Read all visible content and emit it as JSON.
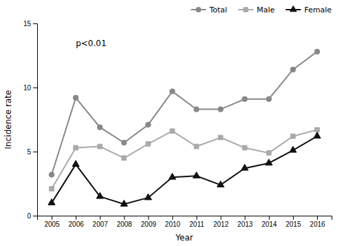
{
  "chart_data": {
    "type": "line",
    "x": [
      2005,
      2006,
      2007,
      2008,
      2009,
      2010,
      2011,
      2012,
      2013,
      2014,
      2015,
      2016
    ],
    "series": [
      {
        "name": "Total",
        "color": "#888888",
        "marker": "circle",
        "values": [
          3.2,
          9.2,
          6.9,
          5.7,
          7.1,
          9.7,
          8.3,
          8.3,
          9.1,
          9.1,
          11.4,
          12.8
        ]
      },
      {
        "name": "Male",
        "color": "#aaaaaa",
        "marker": "square",
        "values": [
          2.1,
          5.3,
          5.4,
          4.5,
          5.6,
          6.6,
          5.4,
          6.1,
          5.3,
          4.9,
          6.2,
          6.7
        ]
      },
      {
        "name": "Female",
        "color": "#111111",
        "marker": "triangle",
        "values": [
          1.0,
          4.0,
          1.5,
          0.9,
          1.4,
          3.0,
          3.1,
          2.4,
          3.7,
          4.1,
          5.1,
          6.2
        ]
      }
    ],
    "xlabel": "Year",
    "ylabel": "Incidence rate",
    "xlim": [
      2004.4,
      2016.6
    ],
    "xticks": [
      2005,
      2006,
      2007,
      2008,
      2009,
      2010,
      2011,
      2012,
      2013,
      2014,
      2015,
      2016
    ],
    "ylim": [
      0,
      15
    ],
    "yticks": [
      0,
      5,
      10,
      15
    ],
    "annotations": [
      {
        "text": "p<0.01",
        "x": 2006.0,
        "y": 13.2
      }
    ],
    "legend": "upper right",
    "grid": false
  }
}
